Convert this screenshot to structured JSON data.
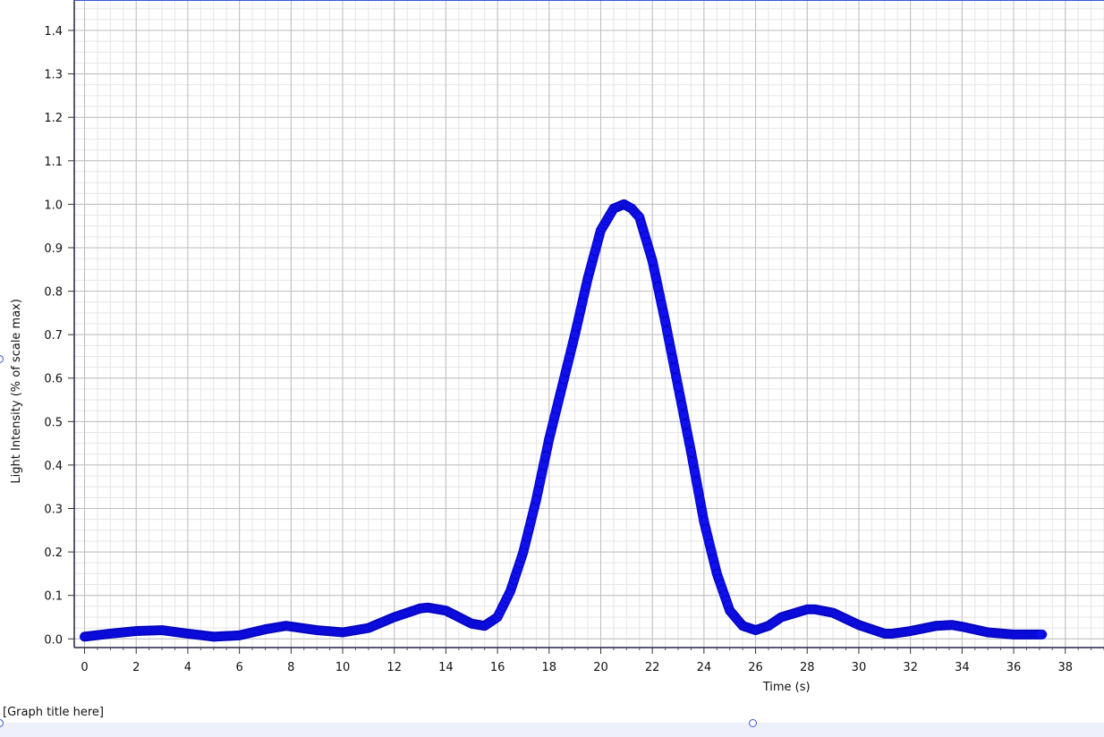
{
  "graph_title_placeholder": "[Graph title here]",
  "chart_data": {
    "type": "scatter",
    "xlabel": "Time (s)",
    "ylabel": "Light Intensity (% of scale max)",
    "xlim": [
      -0.4,
      39.5
    ],
    "ylim": [
      -0.02,
      1.47
    ],
    "x_ticks": [
      0,
      2,
      4,
      6,
      8,
      10,
      12,
      14,
      16,
      18,
      20,
      22,
      24,
      26,
      28,
      30,
      32,
      34,
      36,
      38
    ],
    "x_tick_labels": [
      "0",
      "2",
      "4",
      "6",
      "8",
      "10",
      "12",
      "14",
      "16",
      "18",
      "20",
      "22",
      "24",
      "26",
      "28",
      "30",
      "32",
      "34",
      "36",
      "38"
    ],
    "y_ticks": [
      0.0,
      0.1,
      0.2,
      0.3,
      0.4,
      0.5,
      0.6,
      0.7,
      0.8,
      0.9,
      1.0,
      1.1,
      1.2,
      1.3,
      1.4
    ],
    "y_tick_labels": [
      "0.0",
      "0.1",
      "0.2",
      "0.3",
      "0.4",
      "0.5",
      "0.6",
      "0.7",
      "0.8",
      "0.9",
      "1.0",
      "1.1",
      "1.2",
      "1.3",
      "1.4"
    ],
    "grid": true,
    "minor_grid": true,
    "series_color": "#1010ee",
    "series": [
      {
        "x": [
          0,
          1,
          2,
          3,
          4,
          5,
          6,
          7,
          7.8,
          9,
          10,
          11,
          12,
          13,
          13.3,
          14,
          15,
          15.5,
          16,
          16.5,
          17,
          17.5,
          18,
          18.5,
          19,
          19.5,
          20,
          20.5,
          20.9,
          21.2,
          21.5,
          22,
          22.5,
          23,
          23.5,
          24,
          24.5,
          25,
          25.5,
          26,
          26.5,
          27,
          28,
          28.3,
          29,
          30,
          31,
          31.3,
          32,
          33,
          33.6,
          34,
          35,
          36,
          37.1
        ],
        "y": [
          0.005,
          0.012,
          0.018,
          0.02,
          0.012,
          0.005,
          0.008,
          0.022,
          0.03,
          0.02,
          0.015,
          0.025,
          0.05,
          0.07,
          0.072,
          0.065,
          0.035,
          0.03,
          0.05,
          0.11,
          0.2,
          0.32,
          0.46,
          0.58,
          0.7,
          0.83,
          0.94,
          0.99,
          1.0,
          0.99,
          0.97,
          0.87,
          0.73,
          0.58,
          0.43,
          0.27,
          0.15,
          0.065,
          0.03,
          0.02,
          0.03,
          0.05,
          0.068,
          0.068,
          0.06,
          0.032,
          0.012,
          0.012,
          0.018,
          0.03,
          0.032,
          0.028,
          0.015,
          0.01,
          0.01
        ]
      }
    ]
  }
}
